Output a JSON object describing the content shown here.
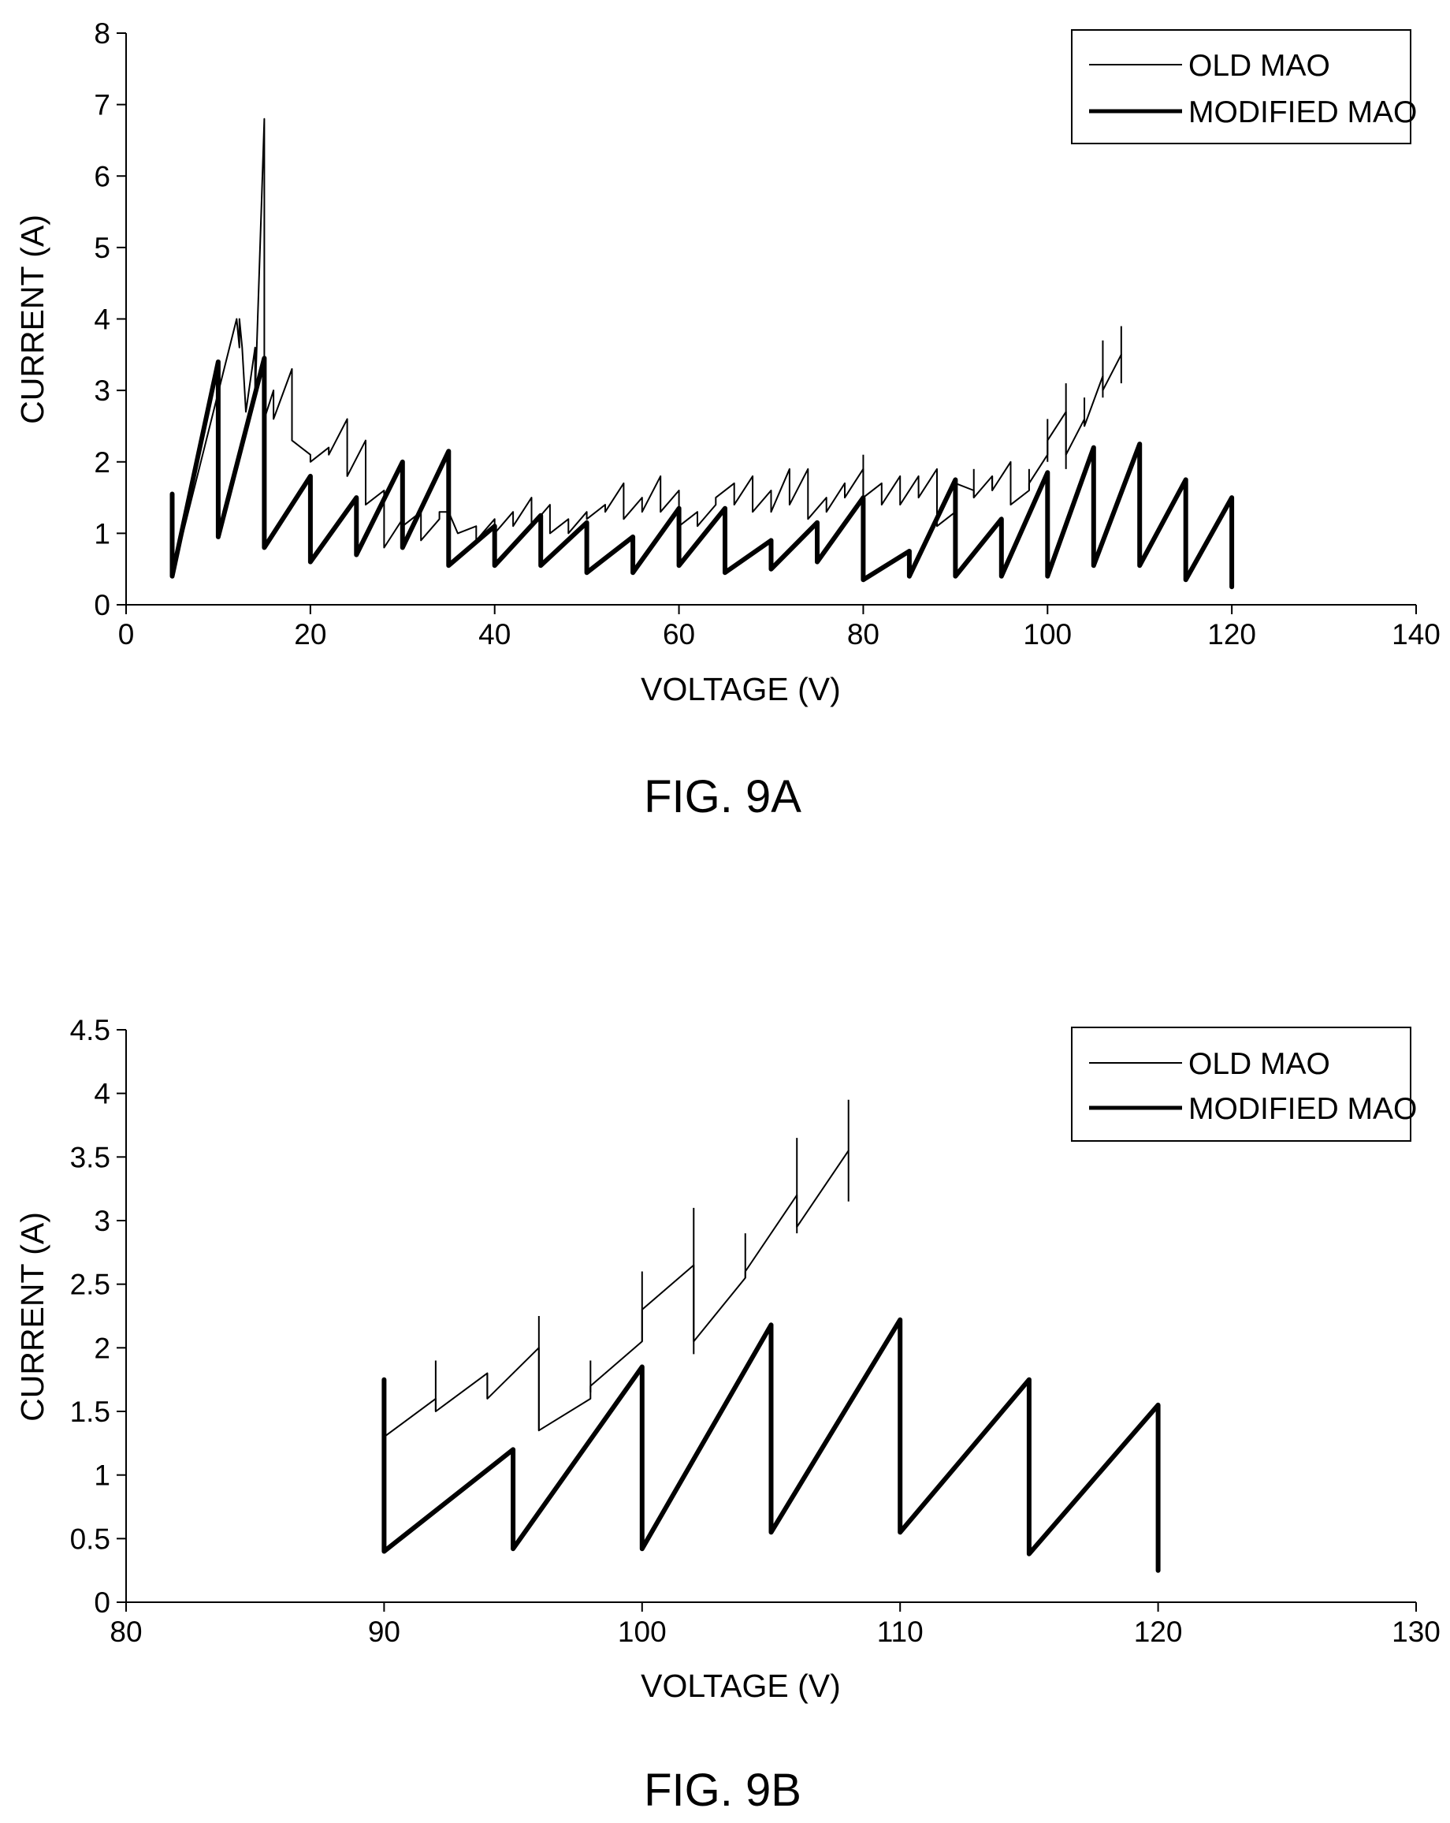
{
  "chart_data": [
    {
      "type": "line",
      "caption": "FIG. 9A",
      "xlabel": "VOLTAGE (V)",
      "ylabel": "CURRENT (A)",
      "xlim": [
        0,
        140
      ],
      "ylim": [
        0,
        8
      ],
      "xticks": [
        0,
        20,
        40,
        60,
        80,
        100,
        120,
        140
      ],
      "yticks": [
        0,
        1,
        2,
        3,
        4,
        5,
        6,
        7,
        8
      ],
      "ytick_labels": [
        "0",
        "1",
        "2",
        "3",
        "4",
        "5",
        "6",
        "7",
        "8"
      ],
      "legend_position": "top-right",
      "series": [
        {
          "name": "OLD MAO",
          "style": "thin",
          "points": [
            [
              5,
              1.5
            ],
            [
              5,
              0.4
            ],
            [
              12,
              4
            ],
            [
              12.3,
              3.6
            ],
            [
              12.3,
              4.0
            ],
            [
              12.6,
              3.6
            ],
            [
              13,
              2.7
            ],
            [
              14,
              3.6
            ],
            [
              14,
              2.9
            ],
            [
              15,
              6.8
            ],
            [
              15,
              2.6
            ],
            [
              16,
              3.0
            ],
            [
              16,
              2.6
            ],
            [
              18,
              3.3
            ],
            [
              18,
              2.3
            ],
            [
              20,
              2.1
            ],
            [
              20,
              2.0
            ],
            [
              22,
              2.2
            ],
            [
              22,
              2.1
            ],
            [
              24,
              2.6
            ],
            [
              24,
              1.8
            ],
            [
              26,
              2.3
            ],
            [
              26,
              1.4
            ],
            [
              28,
              1.6
            ],
            [
              28,
              0.8
            ],
            [
              30,
              1.2
            ],
            [
              30,
              1.1
            ],
            [
              32,
              1.3
            ],
            [
              32,
              0.9
            ],
            [
              34,
              1.2
            ],
            [
              34,
              1.3
            ],
            [
              35,
              1.3
            ],
            [
              36,
              1.0
            ],
            [
              38,
              1.1
            ],
            [
              38,
              0.9
            ],
            [
              40,
              1.2
            ],
            [
              40,
              1.0
            ],
            [
              42,
              1.3
            ],
            [
              42,
              1.1
            ],
            [
              44,
              1.5
            ],
            [
              44,
              1.1
            ],
            [
              46,
              1.4
            ],
            [
              46,
              1.0
            ],
            [
              48,
              1.2
            ],
            [
              48,
              1.0
            ],
            [
              50,
              1.3
            ],
            [
              50,
              1.2
            ],
            [
              52,
              1.4
            ],
            [
              52,
              1.3
            ],
            [
              54,
              1.7
            ],
            [
              54,
              1.2
            ],
            [
              56,
              1.5
            ],
            [
              56,
              1.3
            ],
            [
              58,
              1.8
            ],
            [
              58,
              1.3
            ],
            [
              60,
              1.6
            ],
            [
              60,
              1.1
            ],
            [
              62,
              1.3
            ],
            [
              62,
              1.1
            ],
            [
              64,
              1.4
            ],
            [
              64,
              1.5
            ],
            [
              66,
              1.7
            ],
            [
              66,
              1.4
            ],
            [
              68,
              1.8
            ],
            [
              68,
              1.3
            ],
            [
              70,
              1.6
            ],
            [
              70,
              1.3
            ],
            [
              72,
              1.9
            ],
            [
              72,
              1.4
            ],
            [
              74,
              1.9
            ],
            [
              74,
              1.2
            ],
            [
              76,
              1.5
            ],
            [
              76,
              1.3
            ],
            [
              78,
              1.7
            ],
            [
              78,
              1.5
            ],
            [
              80,
              1.9
            ],
            [
              80,
              1.5
            ],
            [
              82,
              1.7
            ],
            [
              82,
              1.4
            ],
            [
              84,
              1.8
            ],
            [
              84,
              1.4
            ],
            [
              86,
              1.8
            ],
            [
              86,
              1.5
            ],
            [
              88,
              1.9
            ],
            [
              88,
              1.1
            ],
            [
              90,
              1.3
            ],
            [
              90,
              1.7
            ],
            [
              92,
              1.6
            ],
            [
              92,
              1.5
            ],
            [
              94,
              1.8
            ],
            [
              94,
              1.6
            ],
            [
              96,
              2.0
            ],
            [
              96,
              1.4
            ],
            [
              98,
              1.6
            ],
            [
              98,
              1.7
            ],
            [
              100,
              2.1
            ],
            [
              100,
              2.3
            ],
            [
              102,
              2.7
            ],
            [
              102,
              2.1
            ],
            [
              104,
              2.6
            ],
            [
              104,
              2.5
            ],
            [
              106,
              3.2
            ],
            [
              106,
              3.0
            ],
            [
              108,
              3.5
            ]
          ],
          "spikes": [
            [
              80,
              1.5,
              2.1
            ],
            [
              90,
              1.5,
              1.7
            ],
            [
              92,
              1.5,
              1.9
            ],
            [
              94,
              1.6,
              1.8
            ],
            [
              96,
              1.4,
              2.0
            ],
            [
              98,
              1.6,
              1.9
            ],
            [
              100,
              2.0,
              2.6
            ],
            [
              102,
              1.9,
              3.1
            ],
            [
              104,
              2.5,
              2.9
            ],
            [
              106,
              2.9,
              3.7
            ],
            [
              108,
              3.1,
              3.9
            ]
          ]
        },
        {
          "name": "MODIFIED MAO",
          "style": "thick",
          "points": [
            [
              5,
              1.55
            ],
            [
              5,
              0.4
            ],
            [
              10,
              3.4
            ],
            [
              10,
              0.95
            ],
            [
              15,
              3.45
            ],
            [
              15,
              0.8
            ],
            [
              20,
              1.8
            ],
            [
              20,
              0.6
            ],
            [
              25,
              1.5
            ],
            [
              25,
              0.7
            ],
            [
              30,
              2.0
            ],
            [
              30,
              0.8
            ],
            [
              35,
              2.15
            ],
            [
              35,
              0.55
            ],
            [
              40,
              1.1
            ],
            [
              40,
              0.55
            ],
            [
              45,
              1.25
            ],
            [
              45,
              0.55
            ],
            [
              50,
              1.15
            ],
            [
              50,
              0.45
            ],
            [
              55,
              0.95
            ],
            [
              55,
              0.45
            ],
            [
              60,
              1.35
            ],
            [
              60,
              0.55
            ],
            [
              65,
              1.35
            ],
            [
              65,
              0.45
            ],
            [
              70,
              0.9
            ],
            [
              70,
              0.5
            ],
            [
              75,
              1.15
            ],
            [
              75,
              0.6
            ],
            [
              80,
              1.5
            ],
            [
              80,
              0.35
            ],
            [
              85,
              0.75
            ],
            [
              85,
              0.4
            ],
            [
              90,
              1.75
            ],
            [
              90,
              0.4
            ],
            [
              95,
              1.2
            ],
            [
              95,
              0.4
            ],
            [
              100,
              1.85
            ],
            [
              100,
              0.4
            ],
            [
              105,
              2.2
            ],
            [
              105,
              0.55
            ],
            [
              110,
              2.25
            ],
            [
              110,
              0.55
            ],
            [
              115,
              1.75
            ],
            [
              115,
              0.35
            ],
            [
              120,
              1.5
            ],
            [
              120,
              0.25
            ]
          ]
        }
      ]
    },
    {
      "type": "line",
      "caption": "FIG. 9B",
      "xlabel": "VOLTAGE (V)",
      "ylabel": "CURRENT (A)",
      "xlim": [
        80,
        130
      ],
      "ylim": [
        0,
        4.5
      ],
      "xticks": [
        80,
        90,
        100,
        110,
        120,
        130
      ],
      "yticks": [
        0,
        0.5,
        1,
        1.5,
        2,
        2.5,
        3,
        3.5,
        4,
        4.5
      ],
      "ytick_labels": [
        "0",
        "0.5",
        "1",
        "1.5",
        "2",
        "2.5",
        "3",
        "3.5",
        "4",
        "4.5"
      ],
      "legend_position": "top-right",
      "series": [
        {
          "name": "OLD MAO",
          "style": "thin",
          "points": [
            [
              90,
              1.3
            ],
            [
              92,
              1.6
            ],
            [
              92,
              1.5
            ],
            [
              94,
              1.8
            ],
            [
              94,
              1.6
            ],
            [
              96,
              2.0
            ],
            [
              96,
              1.35
            ],
            [
              98,
              1.6
            ],
            [
              98,
              1.7
            ],
            [
              100,
              2.05
            ],
            [
              100,
              2.3
            ],
            [
              102,
              2.65
            ],
            [
              102,
              2.05
            ],
            [
              104,
              2.55
            ],
            [
              104,
              2.6
            ],
            [
              106,
              3.2
            ],
            [
              106,
              2.95
            ],
            [
              108,
              3.55
            ]
          ],
          "spikes": [
            [
              90,
              1.3,
              1.75
            ],
            [
              92,
              1.5,
              1.9
            ],
            [
              94,
              1.6,
              1.8
            ],
            [
              96,
              1.35,
              2.25
            ],
            [
              98,
              1.65,
              1.9
            ],
            [
              100,
              2.05,
              2.6
            ],
            [
              102,
              1.95,
              3.1
            ],
            [
              104,
              2.55,
              2.9
            ],
            [
              106,
              2.9,
              3.65
            ],
            [
              108,
              3.15,
              3.95
            ]
          ]
        },
        {
          "name": "MODIFIED MAO",
          "style": "thick",
          "points": [
            [
              90,
              1.75
            ],
            [
              90,
              0.4
            ],
            [
              95,
              1.2
            ],
            [
              95,
              0.42
            ],
            [
              100,
              1.85
            ],
            [
              100,
              0.42
            ],
            [
              105,
              2.18
            ],
            [
              105,
              0.55
            ],
            [
              110,
              2.22
            ],
            [
              110,
              0.55
            ],
            [
              115,
              1.75
            ],
            [
              115,
              0.38
            ],
            [
              120,
              1.55
            ],
            [
              120,
              0.25
            ]
          ]
        }
      ]
    }
  ]
}
